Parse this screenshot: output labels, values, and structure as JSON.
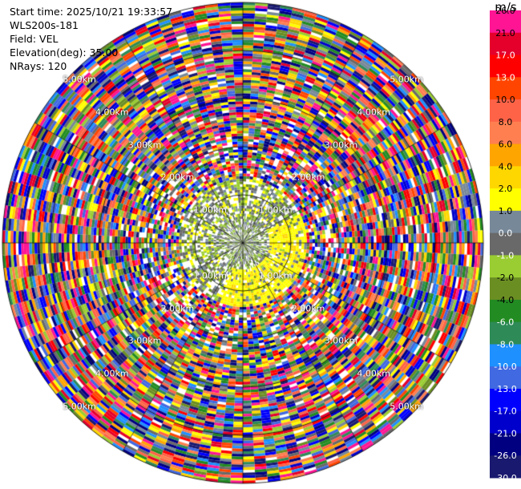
{
  "header": {
    "start_time": "Start time: 2025/10/21 19:33:57",
    "instrument": "WLS200s-181",
    "field": "Field: VEL",
    "elevation": "Elevation(deg): 35.00",
    "nrays": "NRays: 120"
  },
  "chart_data": {
    "type": "heatmap",
    "projection": "polar",
    "field": "VEL",
    "units": "m/s",
    "nrays": 120,
    "elevation_deg": 35.0,
    "range_rings_km": [
      1,
      2,
      3,
      4,
      5
    ],
    "range_ring_labels": [
      "1.00km",
      "2.00km",
      "3.00km",
      "4.00km",
      "5.00km"
    ],
    "max_range_km": 5.0,
    "colorbar": {
      "title": "m/s",
      "levels": [
        -30.0,
        -26.0,
        -21.0,
        -17.0,
        -13.0,
        -10.0,
        -8.0,
        -6.0,
        -4.0,
        -2.0,
        -1.0,
        0.0,
        1.0,
        2.0,
        4.0,
        6.0,
        8.0,
        10.0,
        13.0,
        17.0,
        21.0,
        26.0
      ],
      "tick_labels": [
        "-30.0",
        "-26.0",
        "-21.0",
        "-17.0",
        "-13.0",
        "-10.0",
        "-8.0",
        "-6.0",
        "-4.0",
        "-2.0",
        "-1.0",
        "0.0",
        "1.0",
        "2.0",
        "4.0",
        "6.0",
        "8.0",
        "10.0",
        "13.0",
        "17.0",
        "21.0",
        "26.0"
      ],
      "colors": [
        "#191970",
        "#000080",
        "#0000cd",
        "#0000ff",
        "#4169e1",
        "#1e90ff",
        "#2e8b57",
        "#228b22",
        "#6b8e23",
        "#9acd32",
        "#696969",
        "#778899",
        "#ffff00",
        "#ffd700",
        "#ffa500",
        "#ff7f50",
        "#ff6347",
        "#ff4500",
        "#ff0000",
        "#e4002b",
        "#ff1493"
      ]
    },
    "inner_region_note_colors": [
      "#ffff00",
      "#9acd32",
      "#696969",
      "#778899"
    ]
  }
}
